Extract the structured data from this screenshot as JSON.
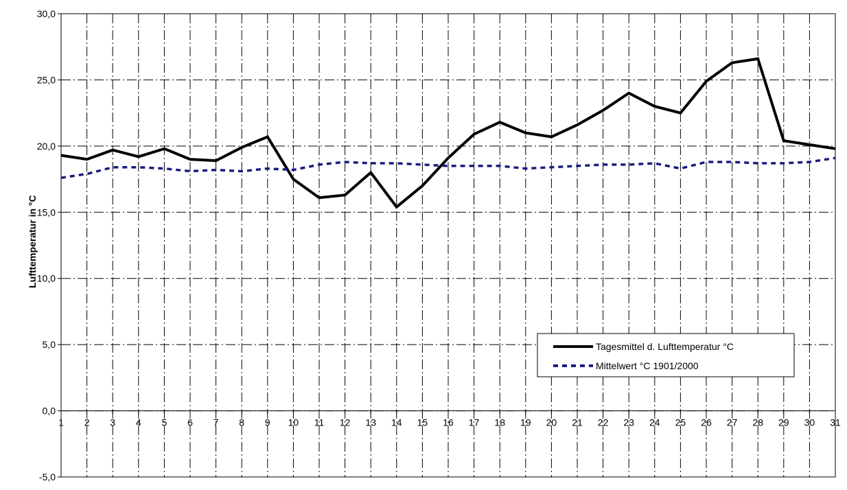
{
  "chart_data": {
    "type": "line",
    "title": "",
    "xlabel": "",
    "ylabel": "Lufttemperatur in °C",
    "x": [
      1,
      2,
      3,
      4,
      5,
      6,
      7,
      8,
      9,
      10,
      11,
      12,
      13,
      14,
      15,
      16,
      17,
      18,
      19,
      20,
      21,
      22,
      23,
      24,
      25,
      26,
      27,
      28,
      29,
      30,
      31
    ],
    "ylim": [
      -5,
      30
    ],
    "yticks": [
      -5,
      0,
      5,
      10,
      15,
      20,
      25,
      30
    ],
    "ytick_labels": [
      "-5,0",
      "0,0",
      "5,0",
      "10,0",
      "15,0",
      "20,0",
      "25,0",
      "30,0"
    ],
    "grid": true,
    "legend_position": "lower-right",
    "series": [
      {
        "name": "Tagesmittel d. Lufttemperatur °C",
        "color": "#000000",
        "style": "solid",
        "values": [
          19.3,
          19.0,
          19.7,
          19.2,
          19.8,
          19.0,
          18.9,
          19.9,
          20.7,
          17.5,
          16.1,
          16.3,
          18.0,
          15.4,
          17.0,
          19.1,
          20.9,
          21.8,
          21.0,
          20.7,
          21.6,
          22.7,
          24.0,
          23.0,
          22.5,
          24.9,
          26.3,
          26.6,
          20.4,
          20.1,
          19.8
        ]
      },
      {
        "name": "Mittelwert °C 1901/2000",
        "color": "#1a1a80",
        "style": "dashed",
        "values": [
          17.6,
          17.9,
          18.4,
          18.4,
          18.3,
          18.1,
          18.2,
          18.1,
          18.3,
          18.2,
          18.6,
          18.8,
          18.7,
          18.7,
          18.6,
          18.5,
          18.5,
          18.5,
          18.3,
          18.4,
          18.5,
          18.6,
          18.6,
          18.7,
          18.3,
          18.8,
          18.8,
          18.7,
          18.7,
          18.8,
          19.1
        ]
      }
    ]
  }
}
